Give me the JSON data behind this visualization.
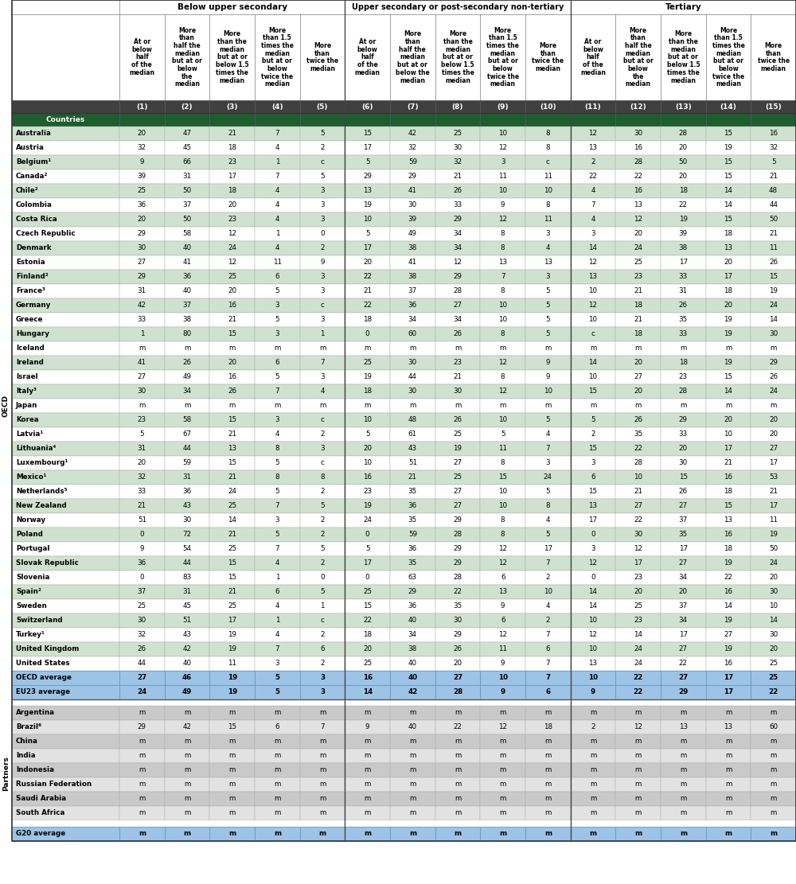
{
  "col_headers_line2": [
    "At or\nbelow\nhalf\nof the\nmedian",
    "More\nthan\nhalf the\nmedian\nbut at or\nbelow\nthe\nmedian",
    "More\nthan the\nmedian\nbut at or\nbelow 1.5\ntimes the\nmedian",
    "More\nthan 1.5\ntimes the\nmedian\nbut at or\nbelow\ntwice the\nmedian",
    "More\nthan\ntwice the\nmedian",
    "At or\nbelow\nhalf\nof the\nmedian",
    "More\nthan\nhalf the\nmedian\nbut at or\nbelow the\nmedian",
    "More\nthan the\nmedian\nbut at or\nbelow 1.5\ntimes the\nmedian",
    "More\nthan 1.5\ntimes the\nmedian\nbut at or\nbelow\ntwice the\nmedian",
    "More\nthan\ntwice the\nmedian",
    "At or\nbelow\nhalf\nof the\nmedian",
    "More\nthan\nhalf the\nmedian\nbut at or\nbelow\nthe\nmedian",
    "More\nthan the\nmedian\nbut at or\nbelow 1.5\ntimes the\nmedian",
    "More\nthan 1.5\ntimes the\nmedian\nbut at or\nbelow\ntwice the\nmedian",
    "More\nthan\ntwice the\nmedian"
  ],
  "col_numbers": [
    "(1)",
    "(2)",
    "(3)",
    "(4)",
    "(5)",
    "(6)",
    "(7)",
    "(8)",
    "(9)",
    "(10)",
    "(11)",
    "(12)",
    "(13)",
    "(14)",
    "(15)"
  ],
  "oecd_countries": [
    "Australia",
    "Austria",
    "Belgium¹",
    "Canada²",
    "Chile²",
    "Colombia",
    "Costa Rica",
    "Czech Republic",
    "Denmark",
    "Estonia",
    "Finland²",
    "France³",
    "Germany",
    "Greece",
    "Hungary",
    "Iceland",
    "Ireland",
    "Israel",
    "Italy³",
    "Japan",
    "Korea",
    "Latvia¹",
    "Lithuania⁴",
    "Luxembourg¹",
    "Mexico¹",
    "Netherlands⁵",
    "New Zealand",
    "Norway",
    "Poland",
    "Portugal",
    "Slovak Republic",
    "Slovenia",
    "Spain²",
    "Sweden",
    "Switzerland",
    "Turkey¹",
    "United Kingdom",
    "United States"
  ],
  "oecd_data": [
    [
      20,
      47,
      21,
      7,
      5,
      15,
      42,
      25,
      10,
      8,
      12,
      30,
      28,
      15,
      16
    ],
    [
      32,
      45,
      18,
      4,
      2,
      17,
      32,
      30,
      12,
      8,
      13,
      16,
      20,
      19,
      32
    ],
    [
      9,
      66,
      23,
      1,
      "c",
      5,
      59,
      32,
      3,
      "c",
      2,
      28,
      50,
      15,
      5
    ],
    [
      39,
      31,
      17,
      7,
      5,
      29,
      29,
      21,
      11,
      11,
      22,
      22,
      20,
      15,
      21
    ],
    [
      25,
      50,
      18,
      4,
      3,
      13,
      41,
      26,
      10,
      10,
      4,
      16,
      18,
      14,
      48
    ],
    [
      36,
      37,
      20,
      4,
      3,
      19,
      30,
      33,
      9,
      8,
      7,
      13,
      22,
      14,
      44
    ],
    [
      20,
      50,
      23,
      4,
      3,
      10,
      39,
      29,
      12,
      11,
      4,
      12,
      19,
      15,
      50
    ],
    [
      29,
      58,
      12,
      1,
      0,
      5,
      49,
      34,
      8,
      3,
      3,
      20,
      39,
      18,
      21
    ],
    [
      30,
      40,
      24,
      4,
      2,
      17,
      38,
      34,
      8,
      4,
      14,
      24,
      38,
      13,
      11
    ],
    [
      27,
      41,
      12,
      11,
      9,
      20,
      41,
      12,
      13,
      13,
      12,
      25,
      17,
      20,
      26
    ],
    [
      29,
      36,
      25,
      6,
      3,
      22,
      38,
      29,
      7,
      3,
      13,
      23,
      33,
      17,
      15
    ],
    [
      31,
      40,
      20,
      5,
      3,
      21,
      37,
      28,
      8,
      5,
      10,
      21,
      31,
      18,
      19
    ],
    [
      42,
      37,
      16,
      3,
      "c",
      22,
      36,
      27,
      10,
      5,
      12,
      18,
      26,
      20,
      24
    ],
    [
      33,
      38,
      21,
      5,
      3,
      18,
      34,
      34,
      10,
      5,
      10,
      21,
      35,
      19,
      14
    ],
    [
      1,
      80,
      15,
      3,
      1,
      0,
      60,
      26,
      8,
      5,
      "c",
      18,
      33,
      19,
      30
    ],
    [
      "m",
      "m",
      "m",
      "m",
      "m",
      "m",
      "m",
      "m",
      "m",
      "m",
      "m",
      "m",
      "m",
      "m",
      "m"
    ],
    [
      41,
      26,
      20,
      6,
      7,
      25,
      30,
      23,
      12,
      9,
      14,
      20,
      18,
      19,
      29
    ],
    [
      27,
      49,
      16,
      5,
      3,
      19,
      44,
      21,
      8,
      9,
      10,
      27,
      23,
      15,
      26
    ],
    [
      30,
      34,
      26,
      7,
      4,
      18,
      30,
      30,
      12,
      10,
      15,
      20,
      28,
      14,
      24
    ],
    [
      "m",
      "m",
      "m",
      "m",
      "m",
      "m",
      "m",
      "m",
      "m",
      "m",
      "m",
      "m",
      "m",
      "m",
      "m"
    ],
    [
      23,
      58,
      15,
      3,
      "c",
      10,
      48,
      26,
      10,
      5,
      5,
      26,
      29,
      20,
      20
    ],
    [
      5,
      67,
      21,
      4,
      2,
      5,
      61,
      25,
      5,
      4,
      2,
      35,
      33,
      10,
      20
    ],
    [
      31,
      44,
      13,
      8,
      3,
      20,
      43,
      19,
      11,
      7,
      15,
      22,
      20,
      17,
      27
    ],
    [
      20,
      59,
      15,
      5,
      "c",
      10,
      51,
      27,
      8,
      3,
      3,
      28,
      30,
      21,
      17
    ],
    [
      32,
      31,
      21,
      8,
      8,
      16,
      21,
      25,
      15,
      24,
      6,
      10,
      15,
      16,
      53
    ],
    [
      33,
      36,
      24,
      5,
      2,
      23,
      35,
      27,
      10,
      5,
      15,
      21,
      26,
      18,
      21
    ],
    [
      21,
      43,
      25,
      7,
      5,
      19,
      36,
      27,
      10,
      8,
      13,
      27,
      27,
      15,
      17
    ],
    [
      51,
      30,
      14,
      3,
      2,
      24,
      35,
      29,
      8,
      4,
      17,
      22,
      37,
      13,
      11
    ],
    [
      0,
      72,
      21,
      5,
      2,
      0,
      59,
      28,
      8,
      5,
      0,
      30,
      35,
      16,
      19
    ],
    [
      9,
      54,
      25,
      7,
      5,
      5,
      36,
      29,
      12,
      17,
      3,
      12,
      17,
      18,
      50
    ],
    [
      36,
      44,
      15,
      4,
      2,
      17,
      35,
      29,
      12,
      7,
      12,
      17,
      27,
      19,
      24
    ],
    [
      0,
      83,
      15,
      1,
      0,
      0,
      63,
      28,
      6,
      2,
      0,
      23,
      34,
      22,
      20
    ],
    [
      37,
      31,
      21,
      6,
      5,
      25,
      29,
      22,
      13,
      10,
      14,
      20,
      20,
      16,
      30
    ],
    [
      25,
      45,
      25,
      4,
      1,
      15,
      36,
      35,
      9,
      4,
      14,
      25,
      37,
      14,
      10
    ],
    [
      30,
      51,
      17,
      1,
      "c",
      22,
      40,
      30,
      6,
      2,
      10,
      23,
      34,
      19,
      14
    ],
    [
      32,
      43,
      19,
      4,
      2,
      18,
      34,
      29,
      12,
      7,
      12,
      14,
      17,
      27,
      30
    ],
    [
      26,
      42,
      19,
      7,
      6,
      20,
      38,
      26,
      11,
      6,
      10,
      24,
      27,
      19,
      20
    ],
    [
      44,
      40,
      11,
      3,
      2,
      25,
      40,
      20,
      9,
      7,
      13,
      24,
      22,
      16,
      25
    ]
  ],
  "averages": [
    [
      "OECD average",
      27,
      46,
      19,
      5,
      3,
      16,
      40,
      27,
      10,
      7,
      10,
      22,
      27,
      17,
      25
    ],
    [
      "EU23 average",
      24,
      49,
      19,
      5,
      3,
      14,
      42,
      28,
      9,
      6,
      9,
      22,
      29,
      17,
      22
    ]
  ],
  "partners_countries": [
    "Argentina",
    "Brazil⁶",
    "China",
    "India",
    "Indonesia",
    "Russian Federation",
    "Saudi Arabia",
    "South Africa"
  ],
  "partners_data": [
    [
      "m",
      "m",
      "m",
      "m",
      "m",
      "m",
      "m",
      "m",
      "m",
      "m",
      "m",
      "m",
      "m",
      "m",
      "m"
    ],
    [
      29,
      42,
      15,
      6,
      7,
      9,
      40,
      22,
      12,
      18,
      2,
      12,
      13,
      13,
      60
    ],
    [
      "m",
      "m",
      "m",
      "m",
      "m",
      "m",
      "m",
      "m",
      "m",
      "m",
      "m",
      "m",
      "m",
      "m",
      "m"
    ],
    [
      "m",
      "m",
      "m",
      "m",
      "m",
      "m",
      "m",
      "m",
      "m",
      "m",
      "m",
      "m",
      "m",
      "m",
      "m"
    ],
    [
      "m",
      "m",
      "m",
      "m",
      "m",
      "m",
      "m",
      "m",
      "m",
      "m",
      "m",
      "m",
      "m",
      "m",
      "m"
    ],
    [
      "m",
      "m",
      "m",
      "m",
      "m",
      "m",
      "m",
      "m",
      "m",
      "m",
      "m",
      "m",
      "m",
      "m",
      "m"
    ],
    [
      "m",
      "m",
      "m",
      "m",
      "m",
      "m",
      "m",
      "m",
      "m",
      "m",
      "m",
      "m",
      "m",
      "m",
      "m"
    ],
    [
      "m",
      "m",
      "m",
      "m",
      "m",
      "m",
      "m",
      "m",
      "m",
      "m",
      "m",
      "m",
      "m",
      "m",
      "m"
    ]
  ],
  "g20_average": [
    "m",
    "m",
    "m",
    "m",
    "m",
    "m",
    "m",
    "m",
    "m",
    "m",
    "m",
    "m",
    "m",
    "m",
    "m"
  ],
  "color_row_alt1": "#cfe2cf",
  "color_row_alt2": "#ffffff",
  "color_average_bg": "#9dc3e6",
  "color_partners_alt1": "#c9c9c9",
  "color_partners_alt2": "#e2e2e2",
  "color_num_row_bg": "#404040",
  "color_countries_header_bg": "#1f5c2e",
  "color_section_header_bg": "#1f3864"
}
